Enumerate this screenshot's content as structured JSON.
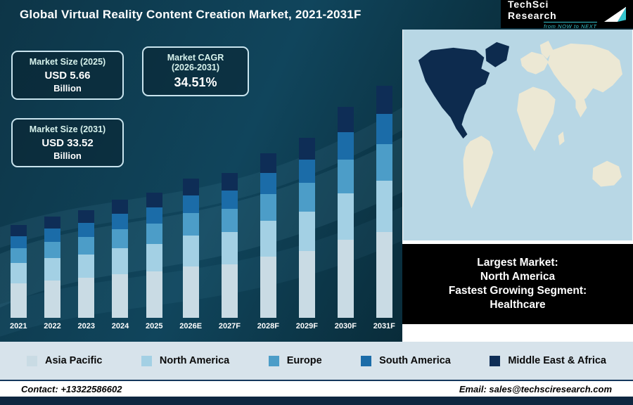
{
  "header": {
    "title": "Global Virtual Reality Content Creation Market, 2021-2031F",
    "logo": {
      "name": "TechSci Research",
      "tagline": "from NOW to NEXT"
    }
  },
  "info_boxes": [
    {
      "title": "Market Size (2025)",
      "value": "USD 5.66",
      "unit": "Billion"
    },
    {
      "title": "Market CAGR",
      "subtitle": "(2026-2031)",
      "value": "34.51%"
    },
    {
      "title": "Market Size (2031)",
      "value": "USD 33.52",
      "unit": "Billion"
    }
  ],
  "chart_data": {
    "type": "bar",
    "stacked": true,
    "title": "Global Virtual Reality Content Creation Market, 2021-2031F",
    "xlabel": "",
    "ylabel": "",
    "value_units": "relative height (no numeric axis shown in figure)",
    "legend_position": "bottom",
    "grid": false,
    "market_size_2025_usd_billion": 5.66,
    "market_size_2031_usd_billion": 33.52,
    "cagr_2026_2031_percent": 34.51,
    "categories": [
      "2021",
      "2022",
      "2023",
      "2024",
      "2025",
      "2026E",
      "2027F",
      "2028F",
      "2029F",
      "2030F",
      "2031F"
    ],
    "series": [
      {
        "name": "Asia Pacific",
        "color": "#c9dbe4",
        "values": [
          14.8,
          16.1,
          17.2,
          18.9,
          20.0,
          22.2,
          23.1,
          26.3,
          28.7,
          33.7,
          37.0
        ]
      },
      {
        "name": "North America",
        "color": "#a3d0e4",
        "values": [
          8.8,
          9.6,
          10.2,
          11.2,
          11.9,
          13.2,
          13.8,
          15.6,
          17.1,
          20.0,
          22.0
        ]
      },
      {
        "name": "Europe",
        "color": "#4c9dc8",
        "values": [
          6.4,
          7.0,
          7.4,
          8.2,
          8.6,
          9.6,
          10.0,
          11.4,
          12.4,
          14.6,
          16.0
        ]
      },
      {
        "name": "South America",
        "color": "#1b6ca8",
        "values": [
          5.2,
          5.7,
          6.0,
          6.6,
          7.0,
          7.8,
          8.1,
          9.2,
          10.1,
          11.8,
          13.0
        ]
      },
      {
        "name": "Middle East & Africa",
        "color": "#0e2d56",
        "values": [
          4.8,
          5.2,
          5.6,
          6.1,
          6.5,
          7.2,
          7.5,
          8.5,
          9.3,
          10.9,
          12.0
        ]
      }
    ]
  },
  "map_panel": {
    "lines": [
      "Largest Market:",
      "North America",
      "Fastest Growing Segment:",
      "Healthcare"
    ],
    "highlight_color": "#0d2b4e",
    "sea_color": "#b8d7e5",
    "land_color": "#ece8d4"
  },
  "footer": {
    "contact": "Contact: +13322586602",
    "email": "Email: sales@techsciresearch.com"
  },
  "colors": {
    "background_dark": "#0b2f40",
    "accent_cyan": "#35c4cf",
    "legend_band": "#d7e3eb",
    "footer_navy": "#0e2740"
  }
}
